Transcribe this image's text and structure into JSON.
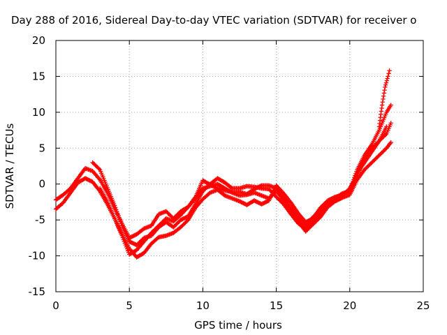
{
  "chart_data": {
    "type": "scatter",
    "title": "Day 288 of 2016, Sidereal Day-to-day VTEC variation (SDTVAR) for receiver o",
    "xlabel": "GPS time / hours",
    "ylabel": "SDTVAR / TECUs",
    "xlim": [
      0,
      25
    ],
    "ylim": [
      -15,
      20
    ],
    "xticks": [
      0,
      5,
      10,
      15,
      20,
      25
    ],
    "yticks": [
      -15,
      -10,
      -5,
      0,
      5,
      10,
      15,
      20
    ],
    "grid": true,
    "marker": "plus",
    "series_color": "#ff0000",
    "series": [
      {
        "x": [
          0.0,
          0.5,
          1.0,
          1.5,
          2.0,
          2.5,
          3.0,
          3.5,
          4.0,
          4.5,
          5.0,
          5.5,
          6.0,
          6.5,
          7.0,
          7.5,
          8.0,
          8.5,
          9.0,
          9.5,
          10.0,
          10.5,
          11.0,
          11.5,
          12.0,
          12.5,
          13.0,
          13.5,
          14.0,
          14.5,
          15.0,
          15.5,
          16.0,
          16.5,
          17.0,
          17.5,
          18.0,
          18.5,
          19.0,
          19.5,
          20.0,
          20.5,
          21.0,
          21.5,
          22.0,
          22.5,
          22.8
        ],
        "y": [
          -2.2,
          -1.5,
          -0.6,
          0.8,
          2.2,
          1.8,
          0.6,
          -1.2,
          -3.4,
          -5.5,
          -7.5,
          -7.0,
          -6.2,
          -5.8,
          -4.2,
          -3.8,
          -4.8,
          -3.8,
          -3.2,
          -1.8,
          0.5,
          -0.1,
          -0.6,
          -0.9,
          -1.1,
          -1.1,
          -1.4,
          -0.7,
          -0.2,
          -0.2,
          -0.6,
          -1.6,
          -3.4,
          -4.8,
          -5.7,
          -4.6,
          -3.6,
          -2.6,
          -2.2,
          -1.6,
          -0.6,
          1.2,
          3.5,
          5.0,
          6.0,
          7.0,
          8.5
        ]
      },
      {
        "x": [
          0.0,
          0.5,
          1.0,
          1.5,
          2.0,
          2.5,
          3.0,
          3.5,
          4.0,
          4.5,
          5.0,
          5.5,
          6.0,
          6.5,
          7.0,
          7.5,
          8.0,
          8.5,
          9.0,
          9.5,
          10.0,
          10.5,
          11.0,
          11.5,
          12.0,
          12.5,
          13.0,
          13.5,
          14.0,
          14.5,
          15.0,
          15.5,
          16.0,
          16.5,
          17.0,
          17.5,
          18.0,
          18.5,
          19.0,
          19.5,
          20.0,
          20.5,
          21.0,
          21.5,
          22.0,
          22.5,
          22.8
        ],
        "y": [
          -3.5,
          -2.6,
          -1.2,
          0.2,
          0.8,
          0.3,
          -1.0,
          -2.8,
          -4.8,
          -7.2,
          -9.8,
          -9.2,
          -8.0,
          -6.8,
          -5.8,
          -4.8,
          -5.2,
          -4.3,
          -3.2,
          -2.0,
          -0.6,
          -0.3,
          0.0,
          -0.6,
          -1.2,
          -1.6,
          -1.5,
          -1.2,
          -1.6,
          -2.0,
          -1.0,
          -2.2,
          -3.6,
          -5.2,
          -6.6,
          -5.6,
          -4.6,
          -3.2,
          -2.4,
          -1.9,
          -1.5,
          0.6,
          2.0,
          3.0,
          4.0,
          5.0,
          5.8
        ]
      },
      {
        "x": [
          2.5,
          3.0,
          3.5,
          4.0,
          4.5,
          5.0,
          5.5,
          6.0,
          6.5,
          7.0,
          7.5,
          8.0,
          8.5,
          9.0,
          9.5,
          10.0,
          10.5,
          11.0,
          11.5,
          12.0,
          12.5,
          13.0,
          13.5,
          14.0,
          14.5,
          15.0,
          15.5,
          16.0,
          16.5,
          17.0,
          17.5,
          18.0,
          18.5,
          19.0,
          19.5,
          20.0,
          20.5,
          21.0,
          21.5,
          22.0,
          22.5,
          22.8
        ],
        "y": [
          3.0,
          2.0,
          -0.5,
          -3.0,
          -5.8,
          -8.0,
          -8.5,
          -7.5,
          -7.2,
          -6.0,
          -5.3,
          -6.0,
          -5.0,
          -4.5,
          -2.8,
          -1.0,
          0.0,
          0.8,
          0.2,
          -0.6,
          -0.6,
          -0.3,
          -0.4,
          -0.6,
          -0.7,
          -1.8,
          -2.8,
          -4.2,
          -5.5,
          -6.2,
          -5.2,
          -4.2,
          -3.0,
          -2.0,
          -1.3,
          -1.0,
          2.0,
          4.0,
          5.5,
          7.5,
          10.0,
          11.0
        ]
      },
      {
        "x": [
          3.0,
          3.5,
          4.0,
          4.5,
          5.0,
          5.5,
          6.0,
          6.5,
          7.0,
          7.5,
          8.0,
          8.5,
          9.0,
          9.5,
          10.0,
          10.5,
          11.0,
          11.5,
          12.0,
          12.5,
          13.0,
          13.5,
          14.0,
          14.5,
          15.0,
          15.5,
          16.0,
          16.5,
          17.0,
          17.5,
          18.0,
          18.5,
          19.0,
          19.5,
          20.0,
          20.5,
          21.0,
          21.5,
          22.0,
          22.5
        ],
        "y": [
          -0.6,
          -2.5,
          -4.8,
          -7.0,
          -9.0,
          -10.2,
          -9.6,
          -8.3,
          -7.4,
          -7.2,
          -6.8,
          -6.0,
          -5.0,
          -3.3,
          -2.1,
          -1.2,
          -0.8,
          -1.6,
          -2.0,
          -2.4,
          -2.9,
          -2.3,
          -2.8,
          -2.3,
          -0.2,
          -1.3,
          -2.6,
          -4.1,
          -5.3,
          -4.8,
          -3.3,
          -2.3,
          -1.8,
          -1.5,
          -0.8,
          1.5,
          3.0,
          4.5,
          6.0,
          8.0
        ]
      },
      {
        "x": [
          22.0,
          22.2,
          22.4,
          22.6,
          22.7
        ],
        "y": [
          8.0,
          11.0,
          13.5,
          15.0,
          15.8
        ]
      }
    ]
  }
}
